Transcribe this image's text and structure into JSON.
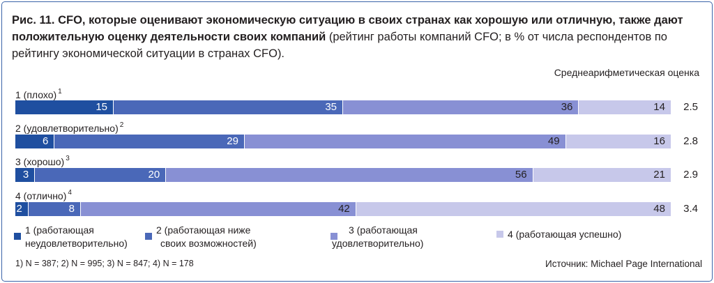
{
  "title": {
    "bold": "Рис. 11. CFO, которые оценивают экономическую ситуацию в своих странах как хорошую или отличную, также дают положительную оценку деятельности своих компаний",
    "normal": " (рейтинг работы компаний CFO; в % от числа респондентов по рейтингу экономической ситуации в странах CFO)."
  },
  "avg_header": "Среднеарифметическая оценка",
  "chart_data": {
    "type": "bar",
    "orientation": "horizontal",
    "stacked": true,
    "unit": "%",
    "categories": [
      "1 (плохо)",
      "2 (удовлетворительно)",
      "3 (хорошо)",
      "4 (отлично)"
    ],
    "category_notes": [
      "1",
      "2",
      "3",
      "4"
    ],
    "series": [
      {
        "name": "1 (работающая неудовлетворительно)",
        "color": "#1f4fa0",
        "values": [
          15,
          6,
          3,
          2
        ]
      },
      {
        "name": "2 (работающая ниже своих возможностей)",
        "color": "#4a68b8",
        "values": [
          35,
          29,
          20,
          8
        ]
      },
      {
        "name": "3 (работающая удовлетворительно)",
        "color": "#8890d4",
        "values": [
          36,
          49,
          56,
          42
        ]
      },
      {
        "name": "4 (работающая успешно)",
        "color": "#c7c8ea",
        "values": [
          14,
          16,
          21,
          48
        ]
      }
    ],
    "averages": [
      "2.5",
      "2.8",
      "2.9",
      "3.4"
    ],
    "legend_position": "bottom"
  },
  "legend": [
    {
      "line1": "1 (работающая",
      "line2": "неудовлетворительно)"
    },
    {
      "line1": "2 (работающая ниже",
      "line2": "своих возможностей)"
    },
    {
      "line1": "3 (работающая",
      "line2": "удовлетворительно)"
    },
    {
      "line1": "4 (работающая успешно)",
      "line2": ""
    }
  ],
  "footnotes": "1)  N = 387;   2)  N = 995;   3)  N = 847;   4)  N = 178",
  "source": "Источник: Michael Page International"
}
